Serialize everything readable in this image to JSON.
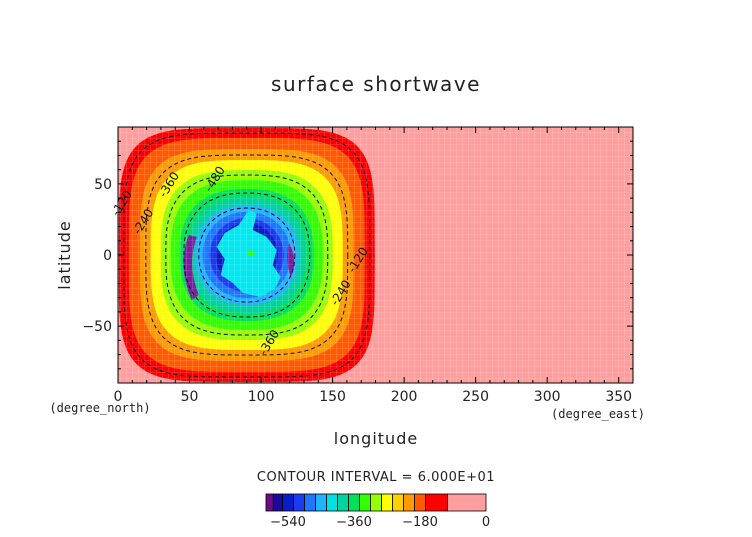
{
  "chart_data": {
    "type": "heatmap",
    "title": "surface shortwave",
    "xlabel": "longitude",
    "ylabel": "latitude",
    "x_unit": "(degree_east)",
    "y_unit": "(degree_north)",
    "xlim": [
      0,
      360
    ],
    "ylim": [
      -90,
      90
    ],
    "x_ticks": [
      "0",
      "50",
      "100",
      "150",
      "200",
      "250",
      "300",
      "350"
    ],
    "x_tick_values": [
      0,
      50,
      100,
      150,
      200,
      250,
      300,
      350
    ],
    "y_ticks": [
      "50",
      "0",
      "−50"
    ],
    "y_tick_values": [
      50,
      0,
      -50
    ],
    "contour_interval_text": "CONTOUR INTERVAL = 6.000E+01",
    "field": {
      "description_of_pattern": "daylit region centered near lon 90, lat 0",
      "center_lon": 90,
      "center_lat": 0,
      "min_value": -600,
      "max_value": 0
    },
    "contour_labels": [
      {
        "text": "-120",
        "lon": 5,
        "lat": 35
      },
      {
        "text": "-240",
        "lon": 20,
        "lat": 22
      },
      {
        "text": "-360",
        "lon": 38,
        "lat": 48
      },
      {
        "text": "-480",
        "lon": 70,
        "lat": 52
      },
      {
        "text": "-120",
        "lon": 170,
        "lat": -5
      },
      {
        "text": "-240",
        "lon": 158,
        "lat": -28
      },
      {
        "text": "-360",
        "lon": 108,
        "lat": -63
      }
    ],
    "colorbar": {
      "levels": [
        -600,
        -570,
        -540,
        -510,
        -480,
        -450,
        -420,
        -390,
        -360,
        -330,
        -300,
        -270,
        -240,
        -210,
        -180,
        -150,
        -120,
        -90,
        -60,
        0
      ],
      "colors": [
        "#6a0d83",
        "#1a0aa0",
        "#0a1ec8",
        "#1a3cf0",
        "#1e78ff",
        "#1eb4ff",
        "#00e0e0",
        "#00d2a0",
        "#00e05a",
        "#32ff00",
        "#96ff00",
        "#ffff00",
        "#ffd000",
        "#ff9a00",
        "#ff5a00",
        "#ff0000",
        "#ff9e9e"
      ],
      "tick_labels": [
        "−540",
        "−360",
        "−180",
        "0"
      ],
      "tick_values": [
        -540,
        -360,
        -180,
        0
      ]
    }
  }
}
